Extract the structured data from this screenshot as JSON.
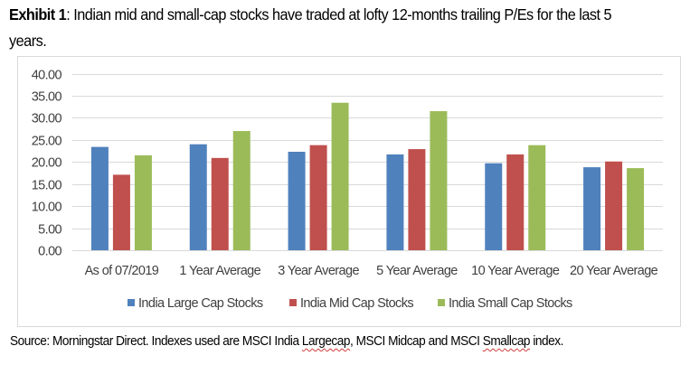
{
  "title": {
    "bold": "Exhibit 1",
    "rest": ": Indian mid and small-cap stocks have traded at lofty 12-months trailing P/Es for the last 5 years."
  },
  "source": {
    "prefix": "Source: Morningstar Direct. Indexes used are MSCI India ",
    "word1": "Largecap",
    "middle": ", MSCI Midcap and MSCI ",
    "word2": "Smallcap",
    "suffix": " index."
  },
  "chart_data": {
    "type": "bar",
    "title": "",
    "xlabel": "",
    "ylabel": "",
    "ylim": [
      0,
      40
    ],
    "yticks": [
      0,
      5,
      10,
      15,
      20,
      25,
      30,
      35,
      40
    ],
    "ytick_labels": [
      "0.00",
      "5.00",
      "10.00",
      "15.00",
      "20.00",
      "25.00",
      "30.00",
      "35.00",
      "40.00"
    ],
    "grid": true,
    "legend_position": "bottom",
    "categories": [
      "As of 07/2019",
      "1 Year Average",
      "3 Year Average",
      "5 Year Average",
      "10 Year Average",
      "20 Year Average"
    ],
    "series": [
      {
        "name": "India Large Cap Stocks",
        "color": "#4F81BD",
        "values": [
          23.4,
          24.0,
          22.3,
          21.7,
          19.7,
          18.8
        ]
      },
      {
        "name": "India Mid Cap Stocks",
        "color": "#C0504D",
        "values": [
          17.1,
          20.9,
          23.8,
          22.9,
          21.7,
          20.1
        ]
      },
      {
        "name": "India Small Cap Stocks",
        "color": "#9BBB59",
        "values": [
          21.5,
          27.0,
          33.4,
          31.5,
          23.8,
          18.6
        ]
      }
    ]
  }
}
